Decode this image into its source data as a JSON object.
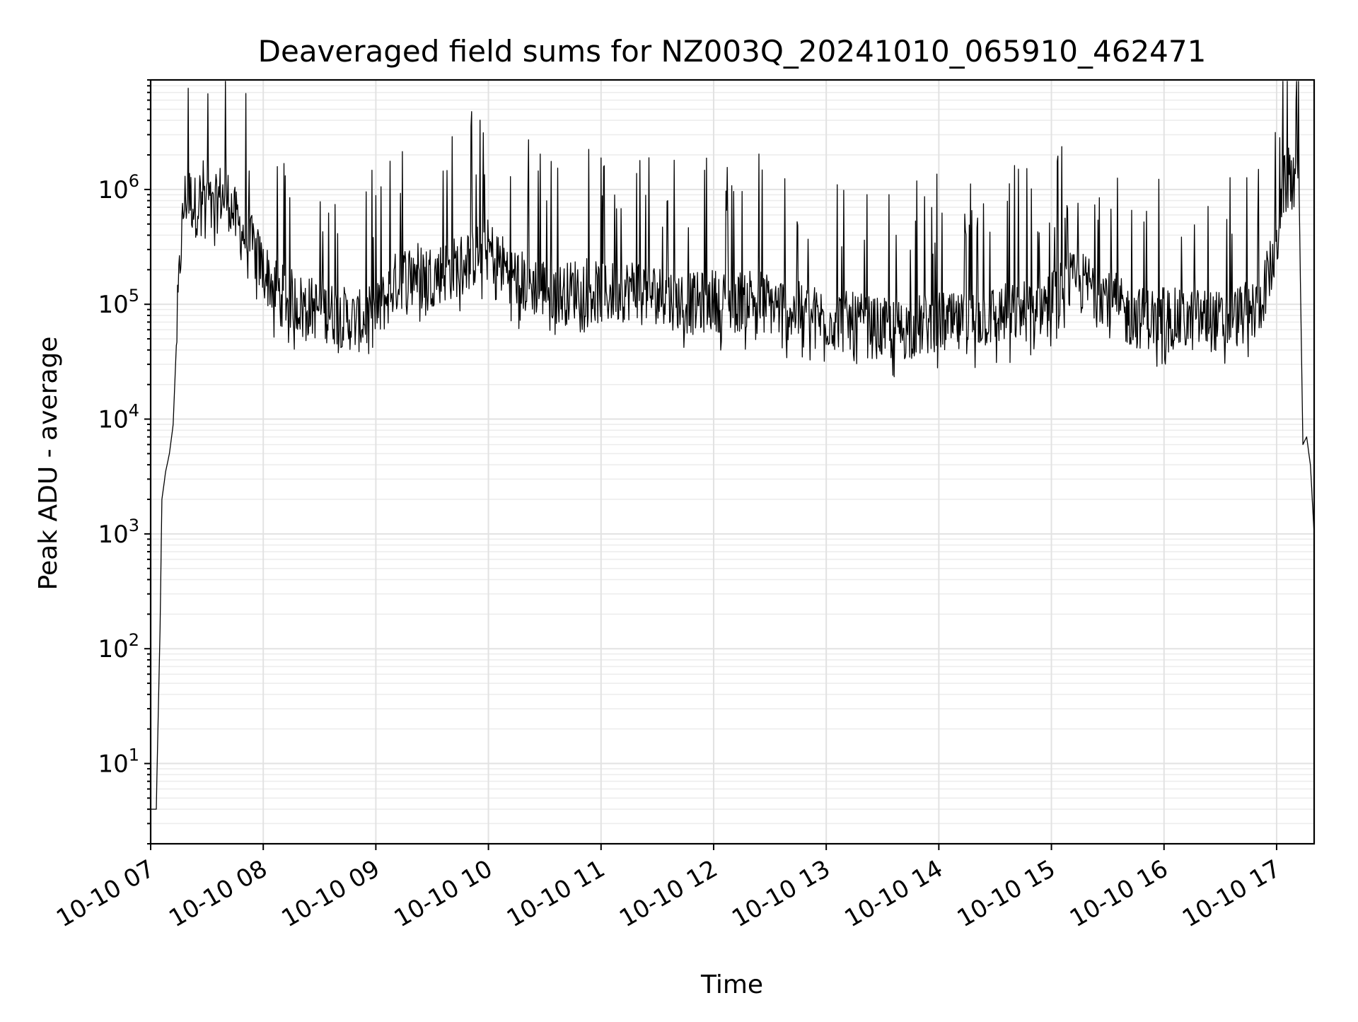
{
  "chart_data": {
    "type": "line",
    "title": "Deaveraged field sums for NZ003Q_20241010_065910_462471",
    "xlabel": "Time",
    "ylabel": "Peak ADU - average",
    "yscale": "log",
    "ylim": [
      2,
      9000000
    ],
    "xlim": [
      "10-10 07:00",
      "10-10 17:20"
    ],
    "grid": "major and minor",
    "legend": "none",
    "line_color": "#000000",
    "x_ticks": [
      "10-10 07",
      "10-10 08",
      "10-10 09",
      "10-10 10",
      "10-10 11",
      "10-10 12",
      "10-10 13",
      "10-10 14",
      "10-10 15",
      "10-10 16",
      "10-10 17"
    ],
    "y_ticks": [
      {
        "value": 10,
        "base": "10",
        "exp": "1"
      },
      {
        "value": 100,
        "base": "10",
        "exp": "2"
      },
      {
        "value": 1000,
        "base": "10",
        "exp": "3"
      },
      {
        "value": 10000,
        "base": "10",
        "exp": "4"
      },
      {
        "value": 100000,
        "base": "10",
        "exp": "5"
      },
      {
        "value": 1000000,
        "base": "10",
        "exp": "6"
      }
    ],
    "series": [
      {
        "x": [
          "10-10 07:00",
          "10-10 07:02",
          "10-10 07:03",
          "10-10 07:05",
          "10-10 07:06",
          "10-10 07:08",
          "10-10 07:10",
          "10-10 07:12",
          "10-10 07:14",
          "10-10 07:16",
          "10-10 07:18",
          "10-10 07:20",
          "10-10 07:24",
          "10-10 07:28",
          "10-10 07:33",
          "10-10 07:37",
          "10-10 07:42",
          "10-10 07:46",
          "10-10 07:50",
          "10-10 07:55",
          "10-10 08:00",
          "10-10 08:05",
          "10-10 08:10",
          "10-10 08:20",
          "10-10 08:30",
          "10-10 08:40",
          "10-10 08:50",
          "10-10 09:00",
          "10-10 09:10",
          "10-10 09:20",
          "10-10 09:30",
          "10-10 09:40",
          "10-10 09:50",
          "10-10 10:00",
          "10-10 10:10",
          "10-10 10:20",
          "10-10 10:30",
          "10-10 10:40",
          "10-10 10:50",
          "10-10 11:00",
          "10-10 11:10",
          "10-10 11:20",
          "10-10 11:30",
          "10-10 11:40",
          "10-10 11:50",
          "10-10 12:00",
          "10-10 12:10",
          "10-10 12:20",
          "10-10 12:30",
          "10-10 12:40",
          "10-10 12:50",
          "10-10 13:00",
          "10-10 13:10",
          "10-10 13:20",
          "10-10 13:30",
          "10-10 13:40",
          "10-10 13:50",
          "10-10 14:00",
          "10-10 14:10",
          "10-10 14:20",
          "10-10 14:30",
          "10-10 14:40",
          "10-10 14:50",
          "10-10 15:00",
          "10-10 15:10",
          "10-10 15:20",
          "10-10 15:30",
          "10-10 15:40",
          "10-10 15:50",
          "10-10 16:00",
          "10-10 16:10",
          "10-10 16:20",
          "10-10 16:30",
          "10-10 16:40",
          "10-10 16:50",
          "10-10 17:00",
          "10-10 17:03",
          "10-10 17:06",
          "10-10 17:10",
          "10-10 17:12",
          "10-10 17:14",
          "10-10 17:16",
          "10-10 17:18",
          "10-10 17:20"
        ],
        "y": [
          4,
          4,
          4,
          150,
          2000,
          3500,
          5000,
          9000,
          60000,
          300000,
          800000,
          900000,
          700000,
          1000000,
          600000,
          900000,
          800000,
          500000,
          400000,
          300000,
          200000,
          150000,
          120000,
          100000,
          90000,
          80000,
          70000,
          80000,
          150000,
          200000,
          180000,
          200000,
          250000,
          300000,
          200000,
          150000,
          140000,
          120000,
          150000,
          120000,
          130000,
          140000,
          120000,
          110000,
          100000,
          110000,
          100000,
          120000,
          100000,
          90000,
          80000,
          75000,
          70000,
          65000,
          60000,
          60000,
          65000,
          70000,
          65000,
          75000,
          80000,
          85000,
          90000,
          110000,
          150000,
          150000,
          120000,
          80000,
          75000,
          80000,
          70000,
          75000,
          70000,
          80000,
          90000,
          300000,
          1000000,
          1200000,
          1500000,
          900000,
          6000,
          7000,
          4000,
          1000
        ]
      }
    ]
  }
}
